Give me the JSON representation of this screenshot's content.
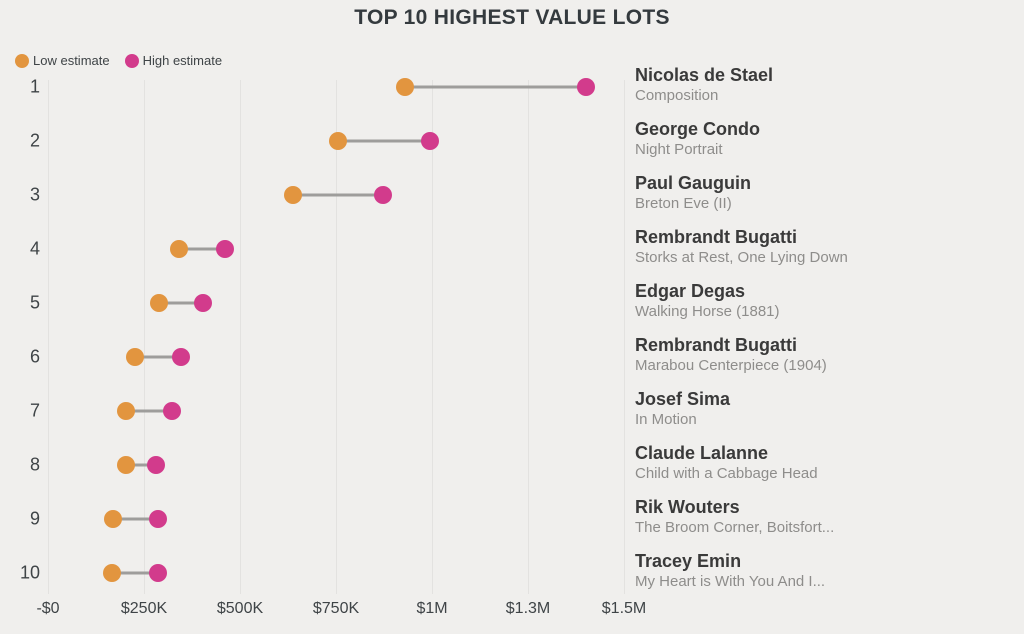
{
  "title": "TOP 10 HIGHEST VALUE LOTS",
  "legend": {
    "low_label": "Low estimate",
    "high_label": "High estimate"
  },
  "colors": {
    "low": "#E2953F",
    "high": "#D23B8C",
    "connector": "#9E9D9B",
    "background": "#F0EFED",
    "gridline": "#E3E2E0",
    "title_text": "#343A3E",
    "axis_text": "#3F4447",
    "artist_text": "#3A3A3A",
    "work_text": "#8E8D8B"
  },
  "chart_data": {
    "type": "dumbbell",
    "title": "TOP 10 HIGHEST VALUE LOTS",
    "legend": [
      "Low estimate",
      "High estimate"
    ],
    "legend_position": "top-left",
    "grid": "vertical",
    "x_axis": {
      "min": 0,
      "max": 1500000,
      "ticks": [
        {
          "value": 0,
          "label": "-$0"
        },
        {
          "value": 250000,
          "label": "$250K"
        },
        {
          "value": 500000,
          "label": "$500K"
        },
        {
          "value": 750000,
          "label": "$750K"
        },
        {
          "value": 1000000,
          "label": "$1M"
        },
        {
          "value": 1250000,
          "label": "$1.3M"
        },
        {
          "value": 1500000,
          "label": "$1.5M"
        }
      ]
    },
    "rows": [
      {
        "rank": "1",
        "artist": "Nicolas de Stael",
        "work": "Composition",
        "low": 930000,
        "high": 1400000
      },
      {
        "rank": "2",
        "artist": "George Condo",
        "work": "Night Portrait",
        "low": 755000,
        "high": 995000
      },
      {
        "rank": "3",
        "artist": "Paul Gauguin",
        "work": "Breton Eve (II)",
        "low": 638000,
        "high": 872000
      },
      {
        "rank": "4",
        "artist": "Rembrandt Bugatti",
        "work": "Storks at Rest, One Lying Down",
        "low": 341000,
        "high": 461000
      },
      {
        "rank": "5",
        "artist": "Edgar Degas",
        "work": "Walking Horse (1881)",
        "low": 289000,
        "high": 404000
      },
      {
        "rank": "6",
        "artist": "Rembrandt Bugatti",
        "work": "Marabou Centerpiece (1904)",
        "low": 227000,
        "high": 346000
      },
      {
        "rank": "7",
        "artist": "Josef Sima",
        "work": "In Motion",
        "low": 203000,
        "high": 323000
      },
      {
        "rank": "8",
        "artist": "Claude Lalanne",
        "work": "Child with a Cabbage Head",
        "low": 203000,
        "high": 281000
      },
      {
        "rank": "9",
        "artist": "Rik Wouters",
        "work": "The Broom Corner, Boitsfort...",
        "low": 169000,
        "high": 287000
      },
      {
        "rank": "10",
        "artist": "Tracey Emin",
        "work": "My Heart is With You And I...",
        "low": 167000,
        "high": 287000
      }
    ]
  }
}
